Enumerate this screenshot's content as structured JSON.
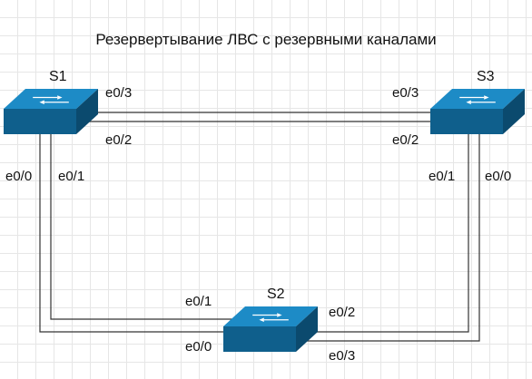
{
  "title": "Резервертывание ЛВС с резервными каналами",
  "colors": {
    "switch_top": "#1d8bc6",
    "switch_front": "#0f5f8c",
    "link": "#333333"
  },
  "switches": [
    {
      "id": "s1",
      "name": "S1"
    },
    {
      "id": "s2",
      "name": "S2"
    },
    {
      "id": "s3",
      "name": "S3"
    }
  ],
  "ports": {
    "s1_e03": "e0/3",
    "s1_e02": "e0/2",
    "s1_e00": "e0/0",
    "s1_e01": "e0/1",
    "s3_e03": "e0/3",
    "s3_e02": "e0/2",
    "s3_e01": "e0/1",
    "s3_e00": "e0/0",
    "s2_e01": "e0/1",
    "s2_e00": "e0/0",
    "s2_e02": "e0/2",
    "s2_e03": "e0/3"
  },
  "links": [
    {
      "from": "S1 e0/3",
      "to": "S3 e0/3"
    },
    {
      "from": "S1 e0/2",
      "to": "S3 e0/2"
    },
    {
      "from": "S1 e0/1",
      "to": "S2 e0/1"
    },
    {
      "from": "S1 e0/0",
      "to": "S2 e0/0"
    },
    {
      "from": "S3 e0/1",
      "to": "S2 e0/2"
    },
    {
      "from": "S3 e0/0",
      "to": "S2 e0/3"
    }
  ]
}
